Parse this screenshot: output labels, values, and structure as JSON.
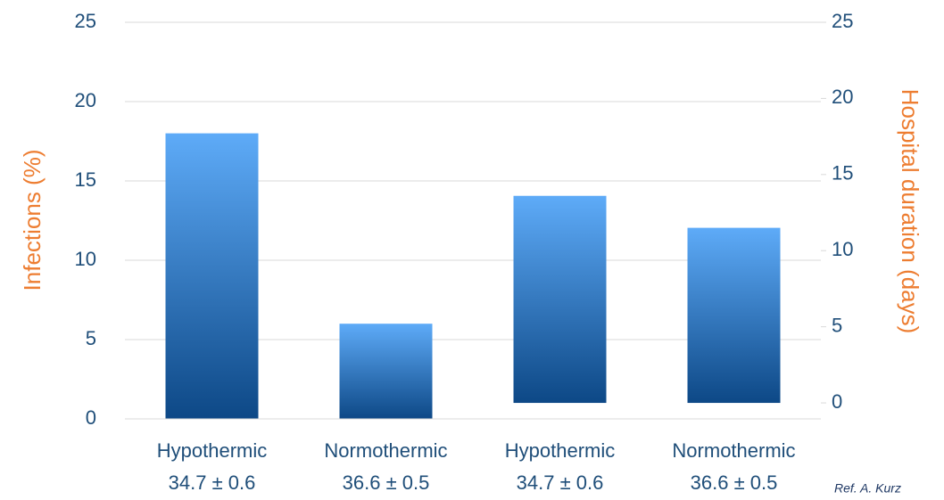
{
  "chart_data": {
    "type": "bar",
    "categories": [
      [
        "Hypothermic",
        "34.7 ± 0.6"
      ],
      [
        "Normothermic",
        "36.6 ± 0.5"
      ],
      [
        "Hypothermic",
        "34.7 ± 0.6"
      ],
      [
        "Normothermic",
        "36.6 ± 0.5"
      ]
    ],
    "series": [
      {
        "values": [
          18,
          6,
          null,
          null
        ],
        "gradient": [
          "#5eabf8",
          "#0d4886"
        ]
      },
      {
        "values": [
          null,
          null,
          13.6,
          11.5
        ],
        "axis": "y2",
        "gradient": [
          "#5eabf8",
          "#0d4886"
        ]
      }
    ],
    "y_label": "Infections (%)",
    "y2_label": "Hospital duration (days)",
    "ylim": [
      0,
      25
    ],
    "yticks": [
      0,
      5,
      10,
      15,
      20,
      25
    ],
    "y2lim": [
      -1.05,
      25
    ],
    "y2ticks": [
      0,
      5,
      10,
      15,
      20,
      25
    ],
    "grid": true,
    "annotation": "Ref. A. Kurz"
  }
}
